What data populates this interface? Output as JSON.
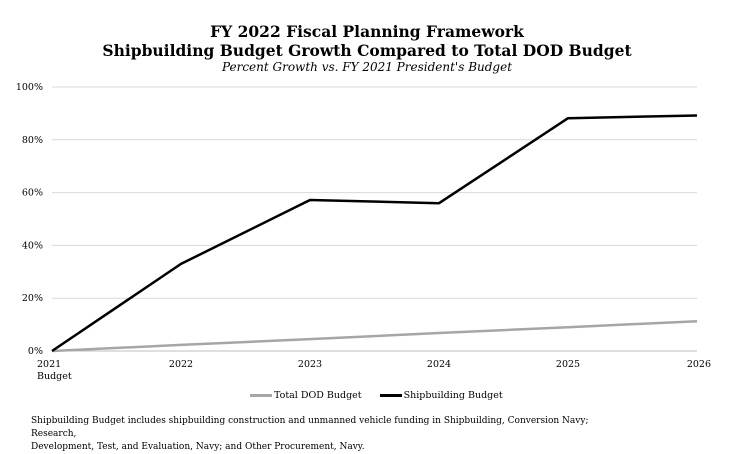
{
  "chart_data": {
    "type": "line",
    "title": "FY 2022 Fiscal Planning Framework",
    "title2": "Shipbuilding Budget Growth Compared to Total DOD Budget",
    "subtitle": "Percent Growth vs. FY 2021 President's Budget",
    "categories": [
      "2021",
      "2022",
      "2023",
      "2024",
      "2025",
      "2026"
    ],
    "category_sublabels": [
      "Budget",
      "",
      "",
      "",
      "",
      ""
    ],
    "yticks": [
      "0%",
      "20%",
      "40%",
      "60%",
      "80%",
      "100%"
    ],
    "ylim": [
      0,
      100
    ],
    "grid": true,
    "legend_position": "bottom",
    "series": [
      {
        "name": "Total DOD Budget",
        "color": "#a6a6a6",
        "values": [
          0,
          2.3,
          4.5,
          6.8,
          9.0,
          11.3
        ]
      },
      {
        "name": "Shipbuilding Budget",
        "color": "#000000",
        "values": [
          0,
          33.0,
          57.2,
          56.0,
          88.2,
          89.2
        ]
      }
    ],
    "footnote_line1": "Shipbuilding Budget includes shipbuilding construction and unmanned vehicle funding in Shipbuilding, Conversion Navy; Research,",
    "footnote_line2": "Development, Test, and Evaluation, Navy; and Other Procurement, Navy."
  }
}
